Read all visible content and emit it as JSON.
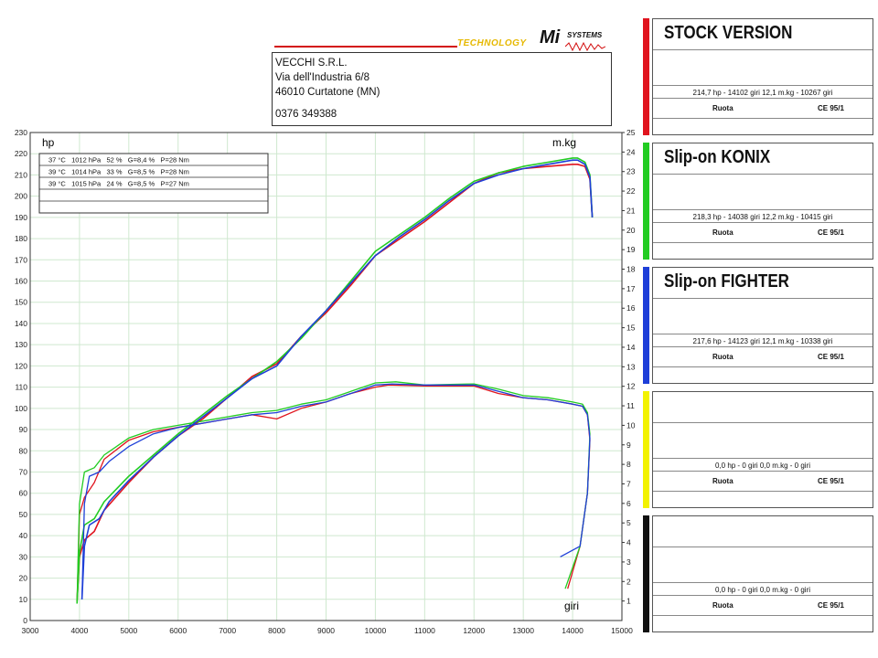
{
  "header": {
    "logo_tagline": "TECHNOLOGY",
    "logo_brand": "Mi",
    "logo_sub": "SYSTEMS",
    "address": {
      "company": "VECCHI S.R.L.",
      "street": "Via dell'Industria 6/8",
      "city": "46010 Curtatone (MN)",
      "phone": "0376 349388"
    }
  },
  "conditions_table": [
    "37 °C   1012 hPa   52 %   G=8,4 %   P=28 Nm",
    "39 °C   1014 hPa   33 %   G=8,5 %   P=28 Nm",
    "39 °C   1015 hPa   24 %   G=8,5 %   P=27 Nm",
    "",
    ""
  ],
  "legend_panels": [
    {
      "title": "STOCK VERSION",
      "color": "#e0141e",
      "stats": "214,7 hp - 14102 giri     12,1 m.kg - 10267 giri",
      "ruota": "Ruota",
      "ce": "CE 95/1"
    },
    {
      "title": "Slip-on KONIX",
      "color": "#22cc22",
      "stats": "218,3 hp - 14038 giri     12,2 m.kg - 10415 giri",
      "ruota": "Ruota",
      "ce": "CE 95/1"
    },
    {
      "title": "Slip-on FIGHTER",
      "color": "#1e3fd8",
      "stats": "217,6 hp - 14123 giri     12,1 m.kg - 10338 giri",
      "ruota": "Ruota",
      "ce": "CE 95/1"
    },
    {
      "title": "",
      "color": "#f2f200",
      "stats": "0,0 hp - 0 giri     0,0 m.kg - 0 giri",
      "ruota": "Ruota",
      "ce": "CE 95/1"
    },
    {
      "title": "",
      "color": "#111111",
      "stats": "0,0 hp - 0 giri     0,0 m.kg - 0 giri",
      "ruota": "Ruota",
      "ce": "CE 95/1"
    }
  ],
  "chart_data": {
    "type": "line",
    "xlabel": "giri",
    "ylabel_left": "hp",
    "ylabel_right": "m.kg",
    "xlim": [
      3000,
      15000
    ],
    "ylim_left": [
      0,
      230
    ],
    "ylim_right": [
      0,
      25
    ],
    "xticks": [
      3000,
      4000,
      5000,
      6000,
      7000,
      8000,
      9000,
      10000,
      11000,
      12000,
      13000,
      14000,
      15000
    ],
    "yticks_left": [
      0,
      10,
      20,
      30,
      40,
      50,
      60,
      70,
      80,
      90,
      100,
      110,
      120,
      130,
      140,
      150,
      160,
      170,
      180,
      190,
      200,
      210,
      220,
      230
    ],
    "yticks_right": [
      1,
      2,
      3,
      4,
      5,
      6,
      7,
      8,
      9,
      10,
      11,
      12,
      13,
      14,
      15,
      16,
      17,
      18,
      19,
      20,
      21,
      22,
      23,
      24,
      25
    ],
    "grid": true,
    "series": [
      {
        "name": "STOCK VERSION",
        "color": "#e0141e",
        "power": [
          [
            3950,
            9
          ],
          [
            4000,
            30
          ],
          [
            4100,
            38
          ],
          [
            4300,
            42
          ],
          [
            4500,
            52
          ],
          [
            5000,
            65
          ],
          [
            5500,
            77
          ],
          [
            6000,
            87
          ],
          [
            6500,
            95
          ],
          [
            7000,
            105
          ],
          [
            7500,
            115
          ],
          [
            8000,
            121
          ],
          [
            8500,
            134
          ],
          [
            9000,
            145
          ],
          [
            9500,
            158
          ],
          [
            10000,
            172
          ],
          [
            10500,
            180
          ],
          [
            11000,
            188
          ],
          [
            11500,
            197
          ],
          [
            12000,
            206
          ],
          [
            12500,
            211
          ],
          [
            13000,
            213
          ],
          [
            13500,
            214
          ],
          [
            14000,
            215
          ],
          [
            14100,
            215
          ],
          [
            14250,
            214
          ],
          [
            14350,
            208
          ],
          [
            14400,
            190
          ]
        ],
        "torque": [
          [
            3950,
            8
          ],
          [
            4000,
            50
          ],
          [
            4100,
            58
          ],
          [
            4300,
            65
          ],
          [
            4500,
            76
          ],
          [
            5000,
            85
          ],
          [
            5500,
            89
          ],
          [
            6000,
            91
          ],
          [
            6500,
            93
          ],
          [
            7000,
            95
          ],
          [
            7500,
            97
          ],
          [
            8000,
            95
          ],
          [
            8500,
            100
          ],
          [
            9000,
            103
          ],
          [
            9500,
            107
          ],
          [
            10000,
            110
          ],
          [
            10267,
            111
          ],
          [
            11000,
            110.5
          ],
          [
            12000,
            110.5
          ],
          [
            12500,
            107
          ],
          [
            13000,
            105
          ],
          [
            13500,
            104
          ],
          [
            14000,
            102
          ],
          [
            14200,
            101
          ],
          [
            14300,
            97
          ],
          [
            14350,
            85
          ],
          [
            14300,
            60
          ],
          [
            14150,
            35
          ],
          [
            13900,
            15
          ]
        ]
      },
      {
        "name": "Slip-on KONIX",
        "color": "#22cc22",
        "power": [
          [
            3950,
            8
          ],
          [
            4000,
            32
          ],
          [
            4100,
            45
          ],
          [
            4300,
            48
          ],
          [
            4500,
            56
          ],
          [
            5000,
            68
          ],
          [
            5500,
            78
          ],
          [
            6000,
            88
          ],
          [
            6500,
            97
          ],
          [
            7000,
            106
          ],
          [
            7500,
            114
          ],
          [
            8000,
            122
          ],
          [
            8500,
            133
          ],
          [
            9000,
            146
          ],
          [
            9500,
            160
          ],
          [
            10000,
            174
          ],
          [
            10500,
            182
          ],
          [
            11000,
            190
          ],
          [
            11500,
            199
          ],
          [
            12000,
            207
          ],
          [
            12500,
            211
          ],
          [
            13000,
            214
          ],
          [
            13500,
            216
          ],
          [
            14000,
            218
          ],
          [
            14100,
            218
          ],
          [
            14250,
            216
          ],
          [
            14350,
            210
          ],
          [
            14400,
            190
          ]
        ],
        "torque": [
          [
            3950,
            8
          ],
          [
            4000,
            55
          ],
          [
            4100,
            70
          ],
          [
            4300,
            72
          ],
          [
            4500,
            78
          ],
          [
            5000,
            86
          ],
          [
            5500,
            90
          ],
          [
            6000,
            92
          ],
          [
            6500,
            94
          ],
          [
            7000,
            96
          ],
          [
            7500,
            98
          ],
          [
            8000,
            99
          ],
          [
            8500,
            102
          ],
          [
            9000,
            104
          ],
          [
            9500,
            108
          ],
          [
            10000,
            112
          ],
          [
            10415,
            112.5
          ],
          [
            11000,
            111
          ],
          [
            12000,
            111.5
          ],
          [
            12500,
            109
          ],
          [
            13000,
            106
          ],
          [
            13500,
            105
          ],
          [
            14000,
            103
          ],
          [
            14200,
            102
          ],
          [
            14300,
            98
          ],
          [
            14350,
            88
          ],
          [
            14300,
            60
          ],
          [
            14150,
            35
          ],
          [
            13850,
            15
          ]
        ]
      },
      {
        "name": "Slip-on FIGHTER",
        "color": "#1e3fd8",
        "power": [
          [
            4050,
            10
          ],
          [
            4100,
            35
          ],
          [
            4200,
            45
          ],
          [
            4400,
            48
          ],
          [
            4600,
            56
          ],
          [
            5000,
            66
          ],
          [
            5500,
            77
          ],
          [
            6000,
            87
          ],
          [
            6500,
            96
          ],
          [
            7000,
            105
          ],
          [
            7500,
            114
          ],
          [
            8000,
            120
          ],
          [
            8500,
            134
          ],
          [
            9000,
            146
          ],
          [
            9500,
            159
          ],
          [
            10000,
            172
          ],
          [
            10500,
            181
          ],
          [
            11000,
            189
          ],
          [
            11500,
            198
          ],
          [
            12000,
            206
          ],
          [
            12500,
            210
          ],
          [
            13000,
            213
          ],
          [
            13500,
            215
          ],
          [
            14000,
            217
          ],
          [
            14100,
            217
          ],
          [
            14250,
            215
          ],
          [
            14350,
            209
          ],
          [
            14400,
            190
          ]
        ],
        "torque": [
          [
            4050,
            10
          ],
          [
            4100,
            55
          ],
          [
            4200,
            68
          ],
          [
            4400,
            70
          ],
          [
            4600,
            75
          ],
          [
            5000,
            82
          ],
          [
            5500,
            88
          ],
          [
            6000,
            91
          ],
          [
            6500,
            93
          ],
          [
            7000,
            95
          ],
          [
            7500,
            97
          ],
          [
            8000,
            98
          ],
          [
            8500,
            101
          ],
          [
            9000,
            103
          ],
          [
            9500,
            107
          ],
          [
            10000,
            111
          ],
          [
            10338,
            111.5
          ],
          [
            11000,
            111
          ],
          [
            12000,
            111
          ],
          [
            12500,
            108
          ],
          [
            13000,
            105
          ],
          [
            13500,
            104
          ],
          [
            14000,
            102
          ],
          [
            14200,
            101
          ],
          [
            14300,
            97
          ],
          [
            14350,
            86
          ],
          [
            14300,
            60
          ],
          [
            14150,
            35
          ],
          [
            13750,
            30
          ]
        ]
      }
    ]
  }
}
